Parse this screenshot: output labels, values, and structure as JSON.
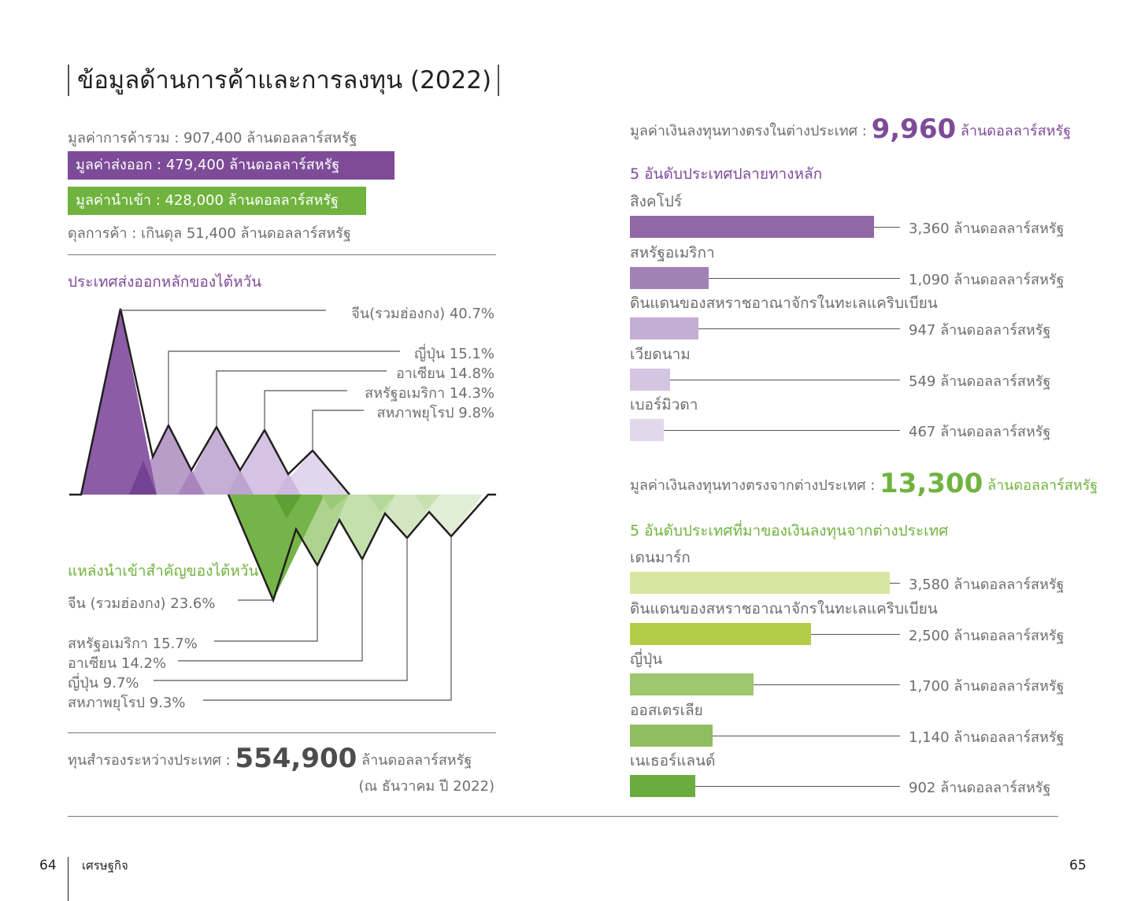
{
  "colors": {
    "purple": "#7e4b98",
    "green": "#70b33f",
    "title_text": "#231f20",
    "body_text": "#6d6e71"
  },
  "title": "ข้อมูลด้านการค้าและการลงทุน (2022)",
  "trade": {
    "total": "มูลค่าการค้ารวม : 907,400 ล้านดอลลาร์สหรัฐ",
    "exports": "มูลค่าส่งออก : 479,400 ล้านดอลลาร์สหรัฐ",
    "imports": "มูลค่านำเข้า : 428,000 ล้านดอลลาร์สหรัฐ",
    "balance": "ดุลการค้า : เกินดุล 51,400 ล้านดอลลาร์สหรัฐ"
  },
  "exports_title": "ประเทศส่งออกหลักของไต้หวัน",
  "imports_title": "แหล่งนำเข้าสำคัญของไต้หวัน",
  "reserves": {
    "prefix": "ทุนสำรองระหว่างประเทศ : ",
    "value": "554,900",
    "unit": " ล้านดอลลาร์สหรัฐ",
    "asof": "(ณ ธันวาคม ปี 2022)"
  },
  "fdi_out": {
    "prefix": "มูลค่าเงินลงทุนทางตรงในต่างประเทศ : ",
    "value": "9,960",
    "unit": " ล้านดอลลาร์สหรัฐ",
    "subtitle": "5 อันดับประเทศปลายทางหลัก"
  },
  "fdi_in": {
    "prefix": "มูลค่าเงินลงทุนทางตรงจากต่างประเทศ : ",
    "value": "13,300",
    "unit": " ล้านดอลลาร์สหรัฐ",
    "subtitle": "5 อันดับประเทศที่มาของเงินลงทุนจากต่างประเทศ"
  },
  "footer": {
    "page_left": "64",
    "section": "เศรษฐกิจ",
    "page_right": "65"
  },
  "chart_data": [
    {
      "type": "area",
      "name": "exports",
      "categories": [
        "จีน(รวมฮ่องกง)",
        "ญี่ปุ่น",
        "อาเซียน",
        "สหรัฐอเมริกา",
        "สหภาพยุโรป"
      ],
      "values": [
        40.7,
        15.1,
        14.8,
        14.3,
        9.8
      ],
      "labels": [
        "จีน(รวมฮ่องกง) 40.7%",
        "ญี่ปุ่น 15.1%",
        "อาเซียน 14.8%",
        "สหรัฐอเมริกา 14.3%",
        "สหภาพยุโรป 9.8%"
      ],
      "unit": "%",
      "colors": [
        "#7e4b98",
        "#b89dc9",
        "#c6afd6",
        "#d4c3e2",
        "#e2d6ec"
      ]
    },
    {
      "type": "area",
      "name": "imports",
      "categories": [
        "จีน (รวมฮ่องกง)",
        "สหรัฐอเมริกา",
        "อาเซียน",
        "ญี่ปุ่น",
        "สหภาพยุโรป"
      ],
      "values": [
        23.6,
        15.7,
        14.2,
        9.7,
        9.3
      ],
      "labels": [
        "จีน (รวมฮ่องกง) 23.6%",
        "สหรัฐอเมริกา 15.7%",
        "อาเซียน 14.2%",
        "ญี่ปุ่น 9.7%",
        "สหภาพยุโรป 9.3%"
      ],
      "unit": "%",
      "colors": [
        "#70b33f",
        "#aed38e",
        "#c4e0ad",
        "#d3e8c2",
        "#dfeed4"
      ]
    },
    {
      "type": "bar",
      "name": "fdi_destinations",
      "categories": [
        "สิงคโปร์",
        "สหรัฐอเมริกา",
        "ดินแดนของสหราชอาณาจักรในทะเลแคริบเบียน",
        "เวียดนาม",
        "เบอร์มิวดา"
      ],
      "values": [
        3360,
        1090,
        947,
        549,
        467
      ],
      "labels": [
        "3,360 ล้านดอลลาร์สหรัฐ",
        "1,090 ล้านดอลลาร์สหรัฐ",
        "947 ล้านดอลลาร์สหรัฐ",
        "549 ล้านดอลลาร์สหรัฐ",
        "467 ล้านดอลลาร์สหรัฐ"
      ],
      "colors": [
        "#9168a8",
        "#a281b5",
        "#c3aed5",
        "#d4c5e3",
        "#e1d8ec"
      ]
    },
    {
      "type": "bar",
      "name": "fdi_sources",
      "categories": [
        "เดนมาร์ก",
        "ดินแดนของสหราชอาณาจักรในทะเลแคริบเบียน",
        "ญี่ปุ่น",
        "ออสเตรเลีย",
        "เนเธอร์แลนด์"
      ],
      "values": [
        3580,
        2500,
        1700,
        1140,
        902
      ],
      "labels": [
        "3,580 ล้านดอลลาร์สหรัฐ",
        "2,500 ล้านดอลลาร์สหรัฐ",
        "1,700 ล้านดอลลาร์สหรัฐ",
        "1,140 ล้านดอลลาร์สหรัฐ",
        "902 ล้านดอลลาร์สหรัฐ"
      ],
      "colors": [
        "#d8e6a0",
        "#b4cc48",
        "#9fc76e",
        "#8fbd60",
        "#6aad3e"
      ]
    }
  ]
}
